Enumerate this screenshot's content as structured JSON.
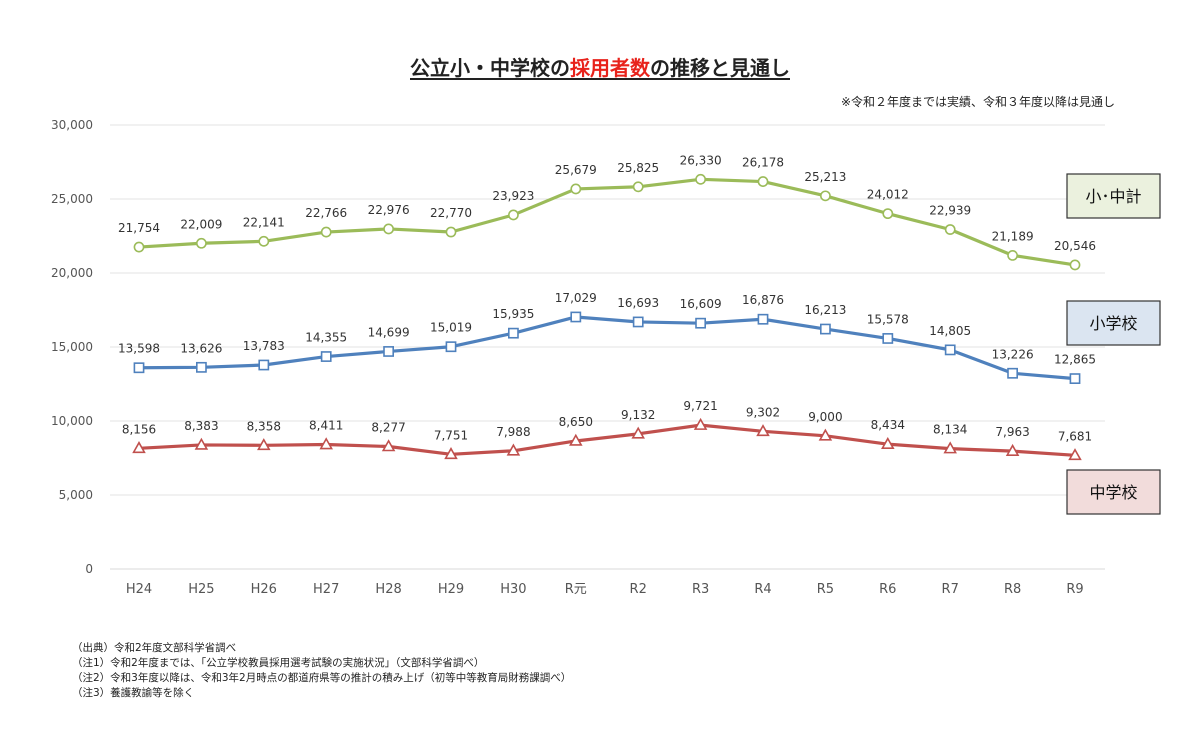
{
  "chart_data": {
    "type": "line",
    "title_parts": [
      "公立小・中学校の",
      "採用者数",
      "の推移と見通し"
    ],
    "subtitle": "※令和２年度までは実績、令和３年度以降は見通し",
    "categories": [
      "H24",
      "H25",
      "H26",
      "H27",
      "H28",
      "H29",
      "H30",
      "R元",
      "R2",
      "R3",
      "R4",
      "R5",
      "R6",
      "R7",
      "R8",
      "R9"
    ],
    "ylim": [
      0,
      30000
    ],
    "yticks": [
      0,
      5000,
      10000,
      15000,
      20000,
      25000,
      30000
    ],
    "ytick_labels": [
      "0",
      "5,000",
      "10,000",
      "15,000",
      "20,000",
      "25,000",
      "30,000"
    ],
    "grid": true,
    "series": [
      {
        "name": "小･中計",
        "color": "#9bbb59",
        "marker": "circle",
        "label_fill": "#ebf1de",
        "label_border": "#333333",
        "values": [
          21754,
          22009,
          22141,
          22766,
          22976,
          22770,
          23923,
          25679,
          25825,
          26330,
          26178,
          25213,
          24012,
          22939,
          21189,
          20546
        ],
        "labels": [
          "21,754",
          "22,009",
          "22,141",
          "22,766",
          "22,976",
          "22,770",
          "23,923",
          "25,679",
          "25,825",
          "26,330",
          "26,178",
          "25,213",
          "24,012",
          "22,939",
          "21,189",
          "20,546"
        ]
      },
      {
        "name": "小学校",
        "color": "#4f81bd",
        "marker": "square",
        "label_fill": "#dbe5f1",
        "label_border": "#333333",
        "values": [
          13598,
          13626,
          13783,
          14355,
          14699,
          15019,
          15935,
          17029,
          16693,
          16609,
          16876,
          16213,
          15578,
          14805,
          13226,
          12865
        ],
        "labels": [
          "13,598",
          "13,626",
          "13,783",
          "14,355",
          "14,699",
          "15,019",
          "15,935",
          "17,029",
          "16,693",
          "16,609",
          "16,876",
          "16,213",
          "15,578",
          "14,805",
          "13,226",
          "12,865"
        ]
      },
      {
        "name": "中学校",
        "color": "#c0504d",
        "marker": "triangle",
        "label_fill": "#f2dcdb",
        "label_border": "#333333",
        "values": [
          8156,
          8383,
          8358,
          8411,
          8277,
          7751,
          7988,
          8650,
          9132,
          9721,
          9302,
          9000,
          8434,
          8134,
          7963,
          7681
        ],
        "labels": [
          "8,156",
          "8,383",
          "8,358",
          "8,411",
          "8,277",
          "7,751",
          "7,988",
          "8,650",
          "9,132",
          "9,721",
          "9,302",
          "9,000",
          "8,434",
          "8,134",
          "7,963",
          "7,681"
        ]
      }
    ]
  },
  "notes": [
    "（出典）令和2年度文部科学省調べ",
    "（注1）令和2年度までは、「公立学校教員採用選考試験の実施状況」（文部科学省調べ）",
    "（注2）令和3年度以降は、令和3年2月時点の都道府県等の推計の積み上げ（初等中等教育局財務課調べ）",
    "（注3）養護教諭等を除く"
  ]
}
